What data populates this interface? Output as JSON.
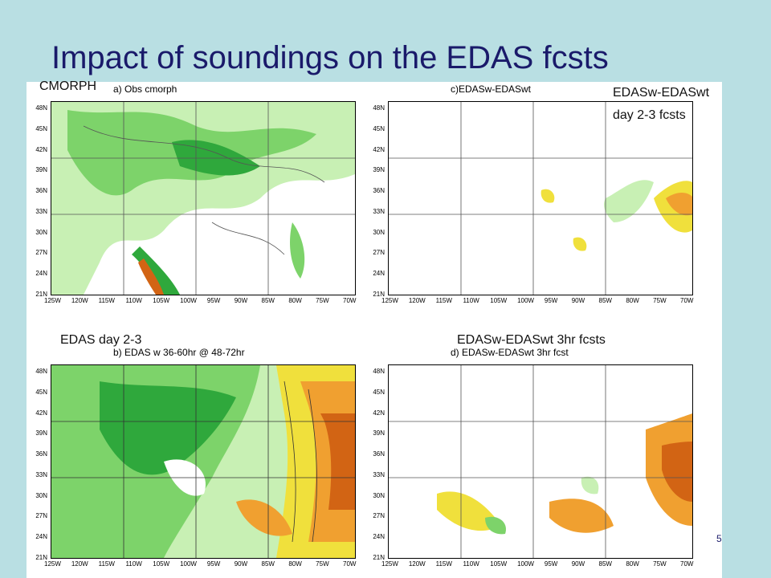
{
  "slide": {
    "title": "Impact of soundings on the EDAS fcsts",
    "page_number": "5"
  },
  "labels": {
    "cmorph": "CMORPH",
    "edasw_line1": "EDASw-EDASwt",
    "edasw_line2": "day 2-3 fcsts",
    "edas_day": "EDAS day 2-3",
    "edasw_3hr": "EDASw-EDASwt 3hr fcsts"
  },
  "panels": [
    {
      "title": "a) Obs cmorph"
    },
    {
      "title": "c)EDASw-EDASwt"
    },
    {
      "title": "b) EDAS  w   36-60hr @ 48-72hr"
    },
    {
      "title": "d) EDASw-EDASwt 3hr fcst"
    }
  ],
  "axes": {
    "lat_ticks": [
      "48N",
      "45N",
      "42N",
      "39N",
      "36N",
      "33N",
      "30N",
      "27N",
      "24N",
      "21N"
    ],
    "lon_ticks": [
      "125W",
      "120W",
      "115W",
      "110W",
      "105W",
      "100W",
      "95W",
      "90W",
      "85W",
      "80W",
      "75W",
      "70W"
    ]
  },
  "colors": {
    "background": "#b9dfe3",
    "title": "#1a1a6a",
    "light_green": "#c8f0b4",
    "mid_green": "#7dd36a",
    "dark_green": "#2fa83c",
    "yellow": "#f0e03c",
    "orange": "#f0a030",
    "dark_orange": "#d26414"
  }
}
